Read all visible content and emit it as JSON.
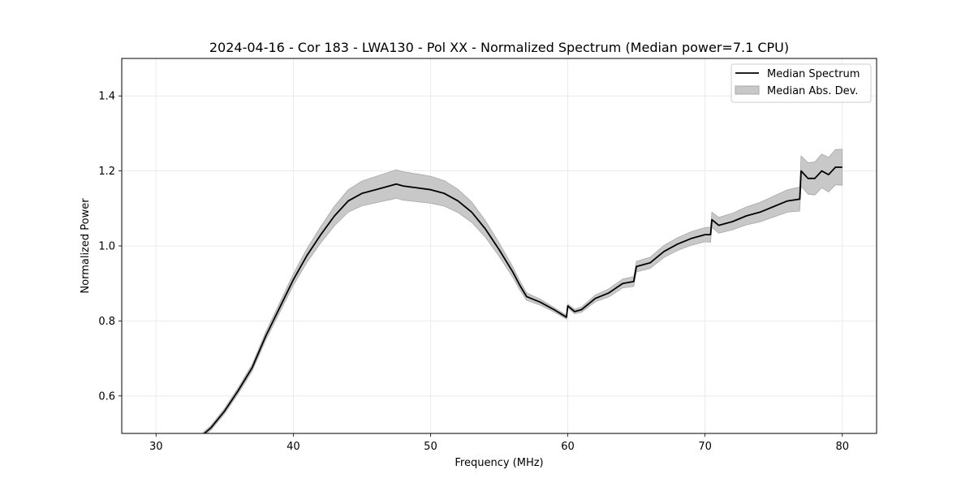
{
  "chart_data": {
    "type": "line",
    "title": "2024-04-16 - Cor 183 - LWA130 - Pol XX - Normalized Spectrum (Median power=7.1 CPU)",
    "xlabel": "Frequency (MHz)",
    "ylabel": "Normalized Power",
    "xlim": [
      27.5,
      82.5
    ],
    "ylim": [
      0.5,
      1.5
    ],
    "xticks": [
      30,
      40,
      50,
      60,
      70,
      80
    ],
    "yticks": [
      0.6,
      0.8,
      1.0,
      1.2,
      1.4
    ],
    "xtick_labels": [
      "30",
      "40",
      "50",
      "60",
      "70",
      "80"
    ],
    "ytick_labels": [
      "0.6",
      "0.8",
      "1.0",
      "1.2",
      "1.4"
    ],
    "grid": true,
    "legend": {
      "placement": "top-right",
      "entries": [
        "Median Spectrum",
        "Median Abs. Dev."
      ]
    },
    "series": [
      {
        "name": "Median Spectrum",
        "color": "#000000",
        "x": [
          33.2,
          34.0,
          35.0,
          36.0,
          37.0,
          38.0,
          39.0,
          40.0,
          41.0,
          42.0,
          43.0,
          44.0,
          45.0,
          46.0,
          47.0,
          47.5,
          48.0,
          49.0,
          50.0,
          51.0,
          52.0,
          53.0,
          54.0,
          55.0,
          56.0,
          56.5,
          57.0,
          58.0,
          59.0,
          59.9,
          60.0,
          60.5,
          61.0,
          62.0,
          63.0,
          64.0,
          64.8,
          65.0,
          66.0,
          67.0,
          68.0,
          69.0,
          70.0,
          70.4,
          70.5,
          71.0,
          72.0,
          73.0,
          74.0,
          75.0,
          76.0,
          76.9,
          77.0,
          77.5,
          78.0,
          78.5,
          79.0,
          79.5,
          80.0
        ],
        "values": [
          0.49,
          0.515,
          0.56,
          0.615,
          0.675,
          0.76,
          0.835,
          0.91,
          0.975,
          1.03,
          1.08,
          1.12,
          1.14,
          1.15,
          1.16,
          1.165,
          1.16,
          1.155,
          1.15,
          1.14,
          1.12,
          1.09,
          1.045,
          0.99,
          0.93,
          0.895,
          0.865,
          0.85,
          0.83,
          0.81,
          0.84,
          0.825,
          0.83,
          0.86,
          0.875,
          0.9,
          0.905,
          0.945,
          0.955,
          0.985,
          1.005,
          1.02,
          1.03,
          1.03,
          1.07,
          1.055,
          1.065,
          1.08,
          1.09,
          1.105,
          1.12,
          1.125,
          1.2,
          1.18,
          1.18,
          1.2,
          1.19,
          1.21,
          1.21
        ],
        "mad": [
          0.005,
          0.006,
          0.007,
          0.008,
          0.009,
          0.011,
          0.013,
          0.015,
          0.018,
          0.022,
          0.026,
          0.03,
          0.033,
          0.035,
          0.037,
          0.038,
          0.038,
          0.037,
          0.036,
          0.034,
          0.031,
          0.027,
          0.022,
          0.018,
          0.014,
          0.012,
          0.01,
          0.008,
          0.006,
          0.005,
          0.005,
          0.006,
          0.007,
          0.009,
          0.011,
          0.012,
          0.013,
          0.014,
          0.015,
          0.016,
          0.017,
          0.018,
          0.019,
          0.02,
          0.02,
          0.021,
          0.022,
          0.024,
          0.026,
          0.028,
          0.03,
          0.032,
          0.04,
          0.042,
          0.044,
          0.045,
          0.046,
          0.047,
          0.048
        ]
      }
    ]
  }
}
